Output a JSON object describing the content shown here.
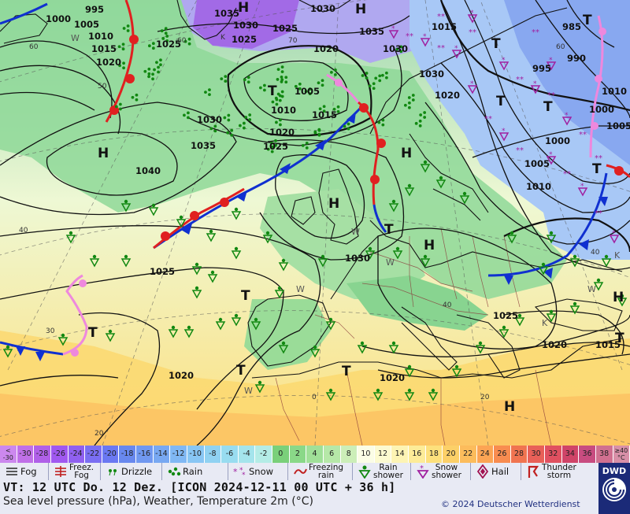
{
  "map": {
    "isobar_labels": [
      {
        "t": "995"
      },
      {
        "t": "1000"
      },
      {
        "t": "1005"
      },
      {
        "t": "1010"
      },
      {
        "t": "1015"
      },
      {
        "t": "1020"
      },
      {
        "t": "1025"
      },
      {
        "t": "1035"
      },
      {
        "t": "1030"
      },
      {
        "t": "1025"
      },
      {
        "t": "1030"
      },
      {
        "t": "1035"
      },
      {
        "t": "1030"
      },
      {
        "t": "1025"
      },
      {
        "t": "1015"
      },
      {
        "t": "985"
      },
      {
        "t": "995"
      },
      {
        "t": "990"
      },
      {
        "t": "1005"
      },
      {
        "t": "1010"
      },
      {
        "t": "1015"
      },
      {
        "t": "1020"
      },
      {
        "t": "1025"
      },
      {
        "t": "1030"
      },
      {
        "t": "1035"
      },
      {
        "t": "1040"
      },
      {
        "t": "1020"
      },
      {
        "t": "1000"
      },
      {
        "t": "1005"
      },
      {
        "t": "1010"
      },
      {
        "t": "1000"
      },
      {
        "t": "1005"
      },
      {
        "t": "1030"
      },
      {
        "t": "1025"
      },
      {
        "t": "1025"
      },
      {
        "t": "1020"
      },
      {
        "t": "1015"
      },
      {
        "t": "1020"
      },
      {
        "t": "1020"
      },
      {
        "t": "1010"
      },
      {
        "t": "1030"
      },
      {
        "t": "1020"
      }
    ],
    "pressure_centers": [
      {
        "t": "H"
      },
      {
        "t": "H"
      },
      {
        "t": "H"
      },
      {
        "t": "H"
      },
      {
        "t": "H"
      },
      {
        "t": "H"
      },
      {
        "t": "H"
      },
      {
        "t": "H"
      },
      {
        "t": "T"
      },
      {
        "t": "T"
      },
      {
        "t": "T"
      },
      {
        "t": "T"
      },
      {
        "t": "T"
      },
      {
        "t": "T"
      },
      {
        "t": "T"
      },
      {
        "t": "T"
      },
      {
        "t": "T"
      },
      {
        "t": "T"
      },
      {
        "t": "T"
      },
      {
        "t": "T"
      },
      {
        "t": "H"
      }
    ],
    "grid_labels": [
      {
        "t": "60"
      },
      {
        "t": "60"
      },
      {
        "t": "50"
      },
      {
        "t": "60"
      },
      {
        "t": "40"
      },
      {
        "t": "40"
      },
      {
        "t": "30"
      },
      {
        "t": "20"
      },
      {
        "t": "70"
      },
      {
        "t": "40"
      },
      {
        "t": "20"
      },
      {
        "t": "0"
      },
      {
        "t": "K"
      }
    ],
    "wind_labels": [
      {
        "t": "W"
      },
      {
        "t": "W"
      },
      {
        "t": "W"
      },
      {
        "t": "W"
      },
      {
        "t": "W"
      },
      {
        "t": "W"
      },
      {
        "t": "K"
      },
      {
        "t": "K"
      }
    ],
    "colors": {
      "front_cold": "#1030d0",
      "front_warm": "#e02020",
      "front_occluded": "#ee88dd",
      "isobar": "#111111",
      "rain": "#118811",
      "snow": "#a020a0"
    }
  },
  "temperature_scale": [
    {
      "label": "<-30",
      "color": "#cc88ee",
      "stack": [
        "<",
        "-30"
      ]
    },
    {
      "label": "-30",
      "color": "#c070e8"
    },
    {
      "label": "-28",
      "color": "#b060e8"
    },
    {
      "label": "-26",
      "color": "#a058f0"
    },
    {
      "label": "-24",
      "color": "#9060f0"
    },
    {
      "label": "-22",
      "color": "#7a6ef2"
    },
    {
      "label": "-20",
      "color": "#6a78f2"
    },
    {
      "label": "-18",
      "color": "#6888ee"
    },
    {
      "label": "-16",
      "color": "#7098f0"
    },
    {
      "label": "-14",
      "color": "#78a8f2"
    },
    {
      "label": "-12",
      "color": "#80b8f4"
    },
    {
      "label": "-10",
      "color": "#88c6f4"
    },
    {
      "label": "-8",
      "color": "#90d2f2"
    },
    {
      "label": "-6",
      "color": "#98dcf0"
    },
    {
      "label": "-4",
      "color": "#a4e4ec"
    },
    {
      "label": "-2",
      "color": "#b4ece6"
    },
    {
      "label": "0",
      "color": "#7ad07a"
    },
    {
      "label": "2",
      "color": "#8ad888"
    },
    {
      "label": "4",
      "color": "#a0e098"
    },
    {
      "label": "6",
      "color": "#b6e8a8"
    },
    {
      "label": "8",
      "color": "#cceeb8"
    },
    {
      "label": "10",
      "color": "#fbfde6"
    },
    {
      "label": "12",
      "color": "#fcfad0"
    },
    {
      "label": "14",
      "color": "#fdf4b4"
    },
    {
      "label": "16",
      "color": "#fdec98"
    },
    {
      "label": "18",
      "color": "#fde07c"
    },
    {
      "label": "20",
      "color": "#fcd068"
    },
    {
      "label": "22",
      "color": "#fcbc5c"
    },
    {
      "label": "24",
      "color": "#fca454"
    },
    {
      "label": "26",
      "color": "#f88c50"
    },
    {
      "label": "28",
      "color": "#f07450"
    },
    {
      "label": "30",
      "color": "#e86058"
    },
    {
      "label": "32",
      "color": "#e05060"
    },
    {
      "label": "34",
      "color": "#d04468"
    },
    {
      "label": "36",
      "color": "#c84c80"
    },
    {
      "label": "38",
      "color": "#d07090"
    },
    {
      "label": "≥40 °C",
      "color": "#d890a8",
      "stack": [
        "≥40",
        "°C"
      ]
    }
  ],
  "legend": {
    "fog": "Fog",
    "freezing_fog": [
      "Freez.",
      "Fog"
    ],
    "drizzle": "Drizzle",
    "rain": "Rain",
    "snow": "Snow",
    "freezing_rain": [
      "Freezing",
      "rain"
    ],
    "rain_shower": [
      "Rain",
      "shower"
    ],
    "snow_shower": [
      "Snow",
      "shower"
    ],
    "hail": "Hail",
    "thunderstorm": [
      "Thunder",
      "storm"
    ]
  },
  "info": {
    "valid_time": "VT: 12 UTC Do.  12 Dez. [ICON 2024-12-11  00 UTC + 36 h]",
    "description": "Sea level pressure (hPa), Weather, Temperature 2m (°C)",
    "copyright": "© 2024 Deutscher Wetterdienst",
    "logo_text": "DWD"
  }
}
